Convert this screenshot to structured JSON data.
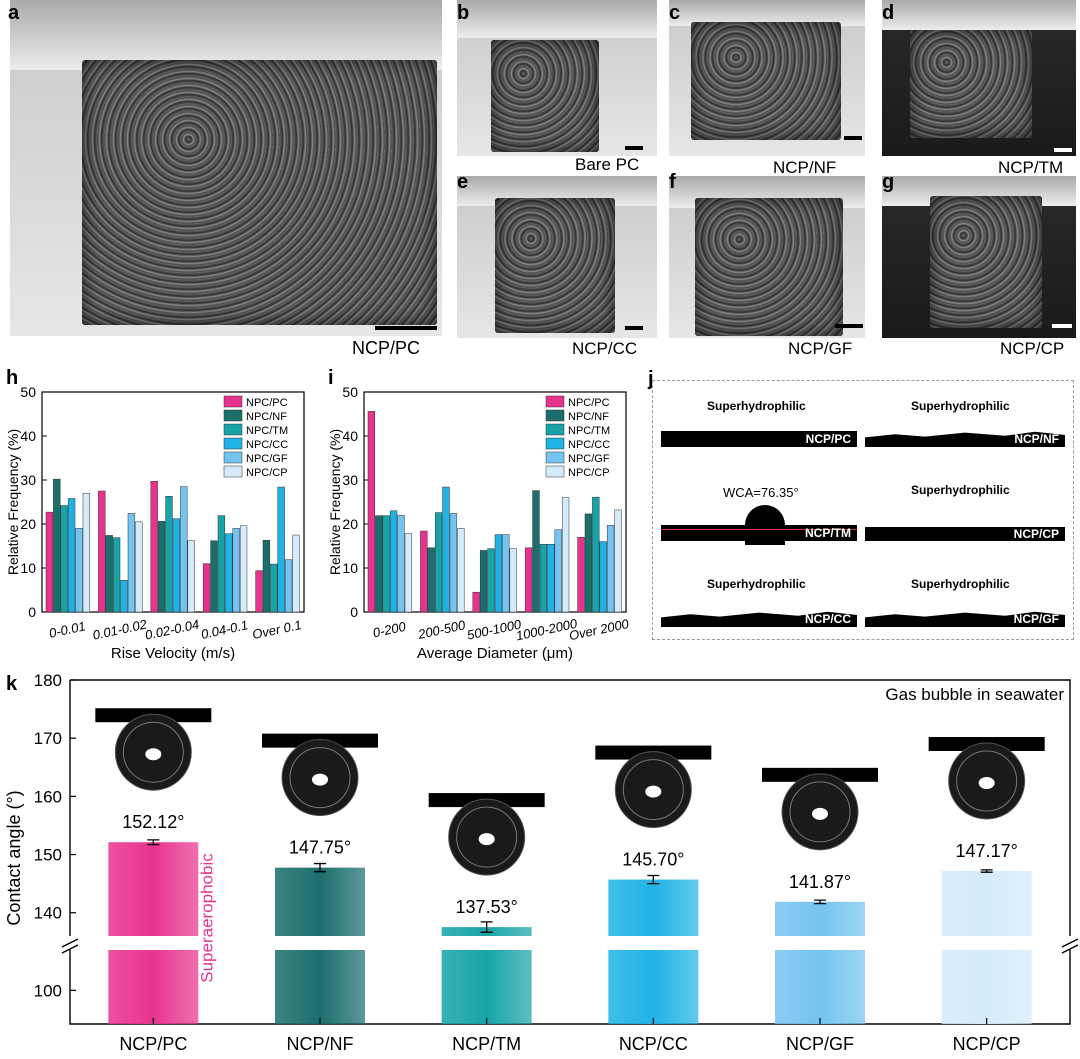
{
  "photos": {
    "a": {
      "letter": "a",
      "label": "NCP/PC"
    },
    "b": {
      "letter": "b",
      "label": "Bare PC"
    },
    "c": {
      "letter": "c",
      "label": "NCP/NF"
    },
    "d": {
      "letter": "d",
      "label": "NCP/TM"
    },
    "e": {
      "letter": "e",
      "label": "NCP/CC"
    },
    "f": {
      "letter": "f",
      "label": "NCP/GF"
    },
    "g": {
      "letter": "g",
      "label": "NCP/CP"
    }
  },
  "panel_j": {
    "letter": "j",
    "cells": [
      {
        "top": "Superhydrophilic",
        "sample": "NCP/PC"
      },
      {
        "top": "Superhydrophilic",
        "sample": "NCP/NF"
      },
      {
        "top": "WCA=76.35°",
        "sample": "NCP/TM"
      },
      {
        "top": "Superhydrophilic",
        "sample": "NCP/CP"
      },
      {
        "top": "Superhydrophilic",
        "sample": "NCP/CC"
      },
      {
        "top": "Superhydrophilic",
        "sample": "NCP/GF"
      }
    ]
  },
  "colors": {
    "PC": "#e8338e",
    "NF": "#1a6e6c",
    "TM": "#17a3a8",
    "CC": "#1fb3e5",
    "GF": "#74c3f0",
    "CP": "#d3ebfb"
  },
  "chart_data": [
    {
      "panel": "h",
      "type": "bar",
      "xlabel": "Rise Velocity (m/s)",
      "ylabel": "Relative Frequency (%)",
      "ylim": [
        0,
        50
      ],
      "yticks": [
        0,
        10,
        20,
        30,
        40,
        50
      ],
      "categories": [
        "0-0.01",
        "0.01-0.02",
        "0.02-0.04",
        "0.04-0.1",
        "Over 0.1"
      ],
      "legend_position": "top-right",
      "series": [
        {
          "name": "NPC/PC",
          "values": [
            22.7,
            27.5,
            29.7,
            11.0,
            9.4
          ]
        },
        {
          "name": "NPC/NF",
          "values": [
            30.2,
            17.4,
            20.6,
            16.2,
            16.3
          ]
        },
        {
          "name": "NPC/TM",
          "values": [
            24.2,
            16.9,
            26.3,
            21.9,
            10.9
          ]
        },
        {
          "name": "NPC/CC",
          "values": [
            25.8,
            7.2,
            21.2,
            17.8,
            28.4
          ]
        },
        {
          "name": "NPC/GF",
          "values": [
            19.0,
            22.4,
            28.5,
            19.0,
            11.9
          ]
        },
        {
          "name": "NPC/CP",
          "values": [
            27.0,
            20.5,
            16.2,
            19.6,
            17.5
          ]
        }
      ]
    },
    {
      "panel": "i",
      "type": "bar",
      "xlabel": "Average Diameter (μm)",
      "ylabel": "Relative Frequency (%)",
      "ylim": [
        0,
        50
      ],
      "yticks": [
        0,
        10,
        20,
        30,
        40,
        50
      ],
      "categories": [
        "0-200",
        "200-500",
        "500-1000",
        "1000-2000",
        "Over 2000"
      ],
      "legend_position": "top-right",
      "series": [
        {
          "name": "NPC/PC",
          "values": [
            45.6,
            18.4,
            4.5,
            14.6,
            17.0
          ]
        },
        {
          "name": "NPC/NF",
          "values": [
            21.9,
            14.6,
            14.0,
            27.6,
            22.3
          ]
        },
        {
          "name": "NPC/TM",
          "values": [
            21.9,
            22.6,
            14.4,
            15.4,
            26.1
          ]
        },
        {
          "name": "NPC/CC",
          "values": [
            23.0,
            28.4,
            17.6,
            15.4,
            16.0
          ]
        },
        {
          "name": "NPC/GF",
          "values": [
            22.0,
            22.4,
            17.6,
            18.7,
            19.7
          ]
        },
        {
          "name": "NPC/CP",
          "values": [
            17.8,
            19.0,
            14.4,
            26.0,
            23.2
          ]
        }
      ]
    },
    {
      "panel": "k",
      "type": "bar",
      "ylabel": "Contact angle (°)",
      "annotation": "Gas bubble  in seawater",
      "side_label": "Superaerophobic",
      "yticks_upper": [
        140,
        150,
        160,
        170,
        180
      ],
      "yticks_lower": [
        100
      ],
      "categories": [
        "NCP/PC",
        "NCP/NF",
        "NCP/TM",
        "NCP/CC",
        "NCP/GF",
        "NCP/CP"
      ],
      "values": [
        152.12,
        147.75,
        137.53,
        145.7,
        141.87,
        147.17
      ],
      "errors": [
        0.4,
        0.7,
        0.9,
        0.7,
        0.3,
        0.2
      ],
      "value_labels": [
        "152.12°",
        "147.75°",
        "137.53°",
        "145.70°",
        "141.87°",
        "147.17°"
      ]
    }
  ]
}
